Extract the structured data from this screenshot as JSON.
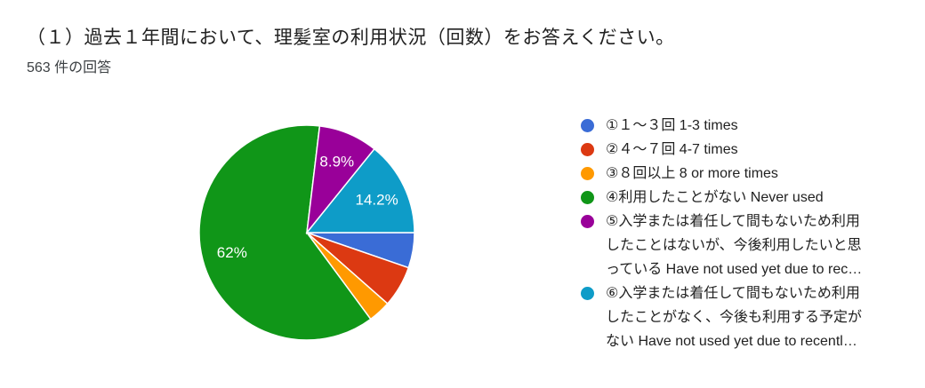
{
  "chart_data": {
    "type": "pie",
    "title": "（１）過去１年間において、理髪室の利用状況（回数）をお答えください。",
    "subtitle": "563 件の回答",
    "legend_position": "right",
    "start_angle_deg": 90,
    "direction": "clockwise",
    "slices": [
      {
        "label": "①１～３回 1-3 times",
        "color": "#3A6CD6",
        "percent": 5.3,
        "percent_label": ""
      },
      {
        "label": "②４～７回 4-7 times",
        "color": "#DC3912",
        "percent": 6.2,
        "percent_label": ""
      },
      {
        "label": "③８回以上 8 or more times",
        "color": "#FF9900",
        "percent": 3.4,
        "percent_label": ""
      },
      {
        "label": "④利用したことがない Never used",
        "color": "#109618",
        "percent": 62,
        "percent_label": "62%"
      },
      {
        "label": "⑤入学または着任して間もないため利用\nしたことはないが、今後利用したいと思\nっている Have not used yet due to rec…",
        "color": "#990099",
        "percent": 8.9,
        "percent_label": "8.9%"
      },
      {
        "label": "⑥入学または着任して間もないため利用\nしたことがなく、今後も利用する予定が\nない Have not used yet due to recentl…",
        "color": "#0E9CC8",
        "percent": 14.2,
        "percent_label": "14.2%"
      }
    ]
  }
}
